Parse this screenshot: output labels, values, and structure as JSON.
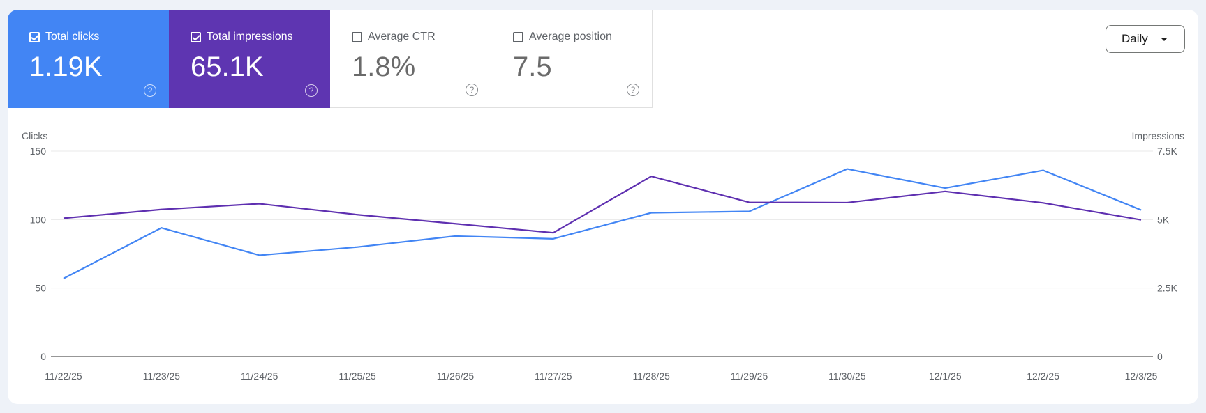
{
  "metrics": [
    {
      "label": "Total clicks",
      "value": "1.19K",
      "checked": true,
      "color": "#4285f4"
    },
    {
      "label": "Total impressions",
      "value": "65.1K",
      "checked": true,
      "color": "#5e35b1"
    },
    {
      "label": "Average CTR",
      "value": "1.8%",
      "checked": false
    },
    {
      "label": "Average position",
      "value": "7.5",
      "checked": false
    }
  ],
  "help_icon": "help-circle-icon",
  "granularity": {
    "selected": "Daily"
  },
  "chart_data": {
    "type": "line",
    "categories": [
      "11/22/25",
      "11/23/25",
      "11/24/25",
      "11/25/25",
      "11/26/25",
      "11/27/25",
      "11/28/25",
      "11/29/25",
      "11/30/25",
      "12/1/25",
      "12/2/25",
      "12/3/25"
    ],
    "ylabel_left": "Clicks",
    "ylabel_right": "Impressions",
    "ylim_left": [
      0,
      150
    ],
    "ylim_right": [
      0,
      7500
    ],
    "yticks_left": [
      "0",
      "50",
      "100",
      "150"
    ],
    "yticks_right": [
      "0",
      "2.5K",
      "5K",
      "7.5K"
    ],
    "grid": true,
    "series": [
      {
        "name": "Clicks",
        "axis": "left",
        "color": "#4285f4",
        "values": [
          57,
          94,
          74,
          80,
          88,
          86,
          105,
          106,
          137,
          123,
          136,
          107
        ]
      },
      {
        "name": "Impressions",
        "axis": "right",
        "color": "#5e2fb0",
        "values": [
          5050,
          5370,
          5580,
          5180,
          4850,
          4520,
          6580,
          5630,
          5620,
          6030,
          5610,
          4990
        ]
      }
    ]
  }
}
